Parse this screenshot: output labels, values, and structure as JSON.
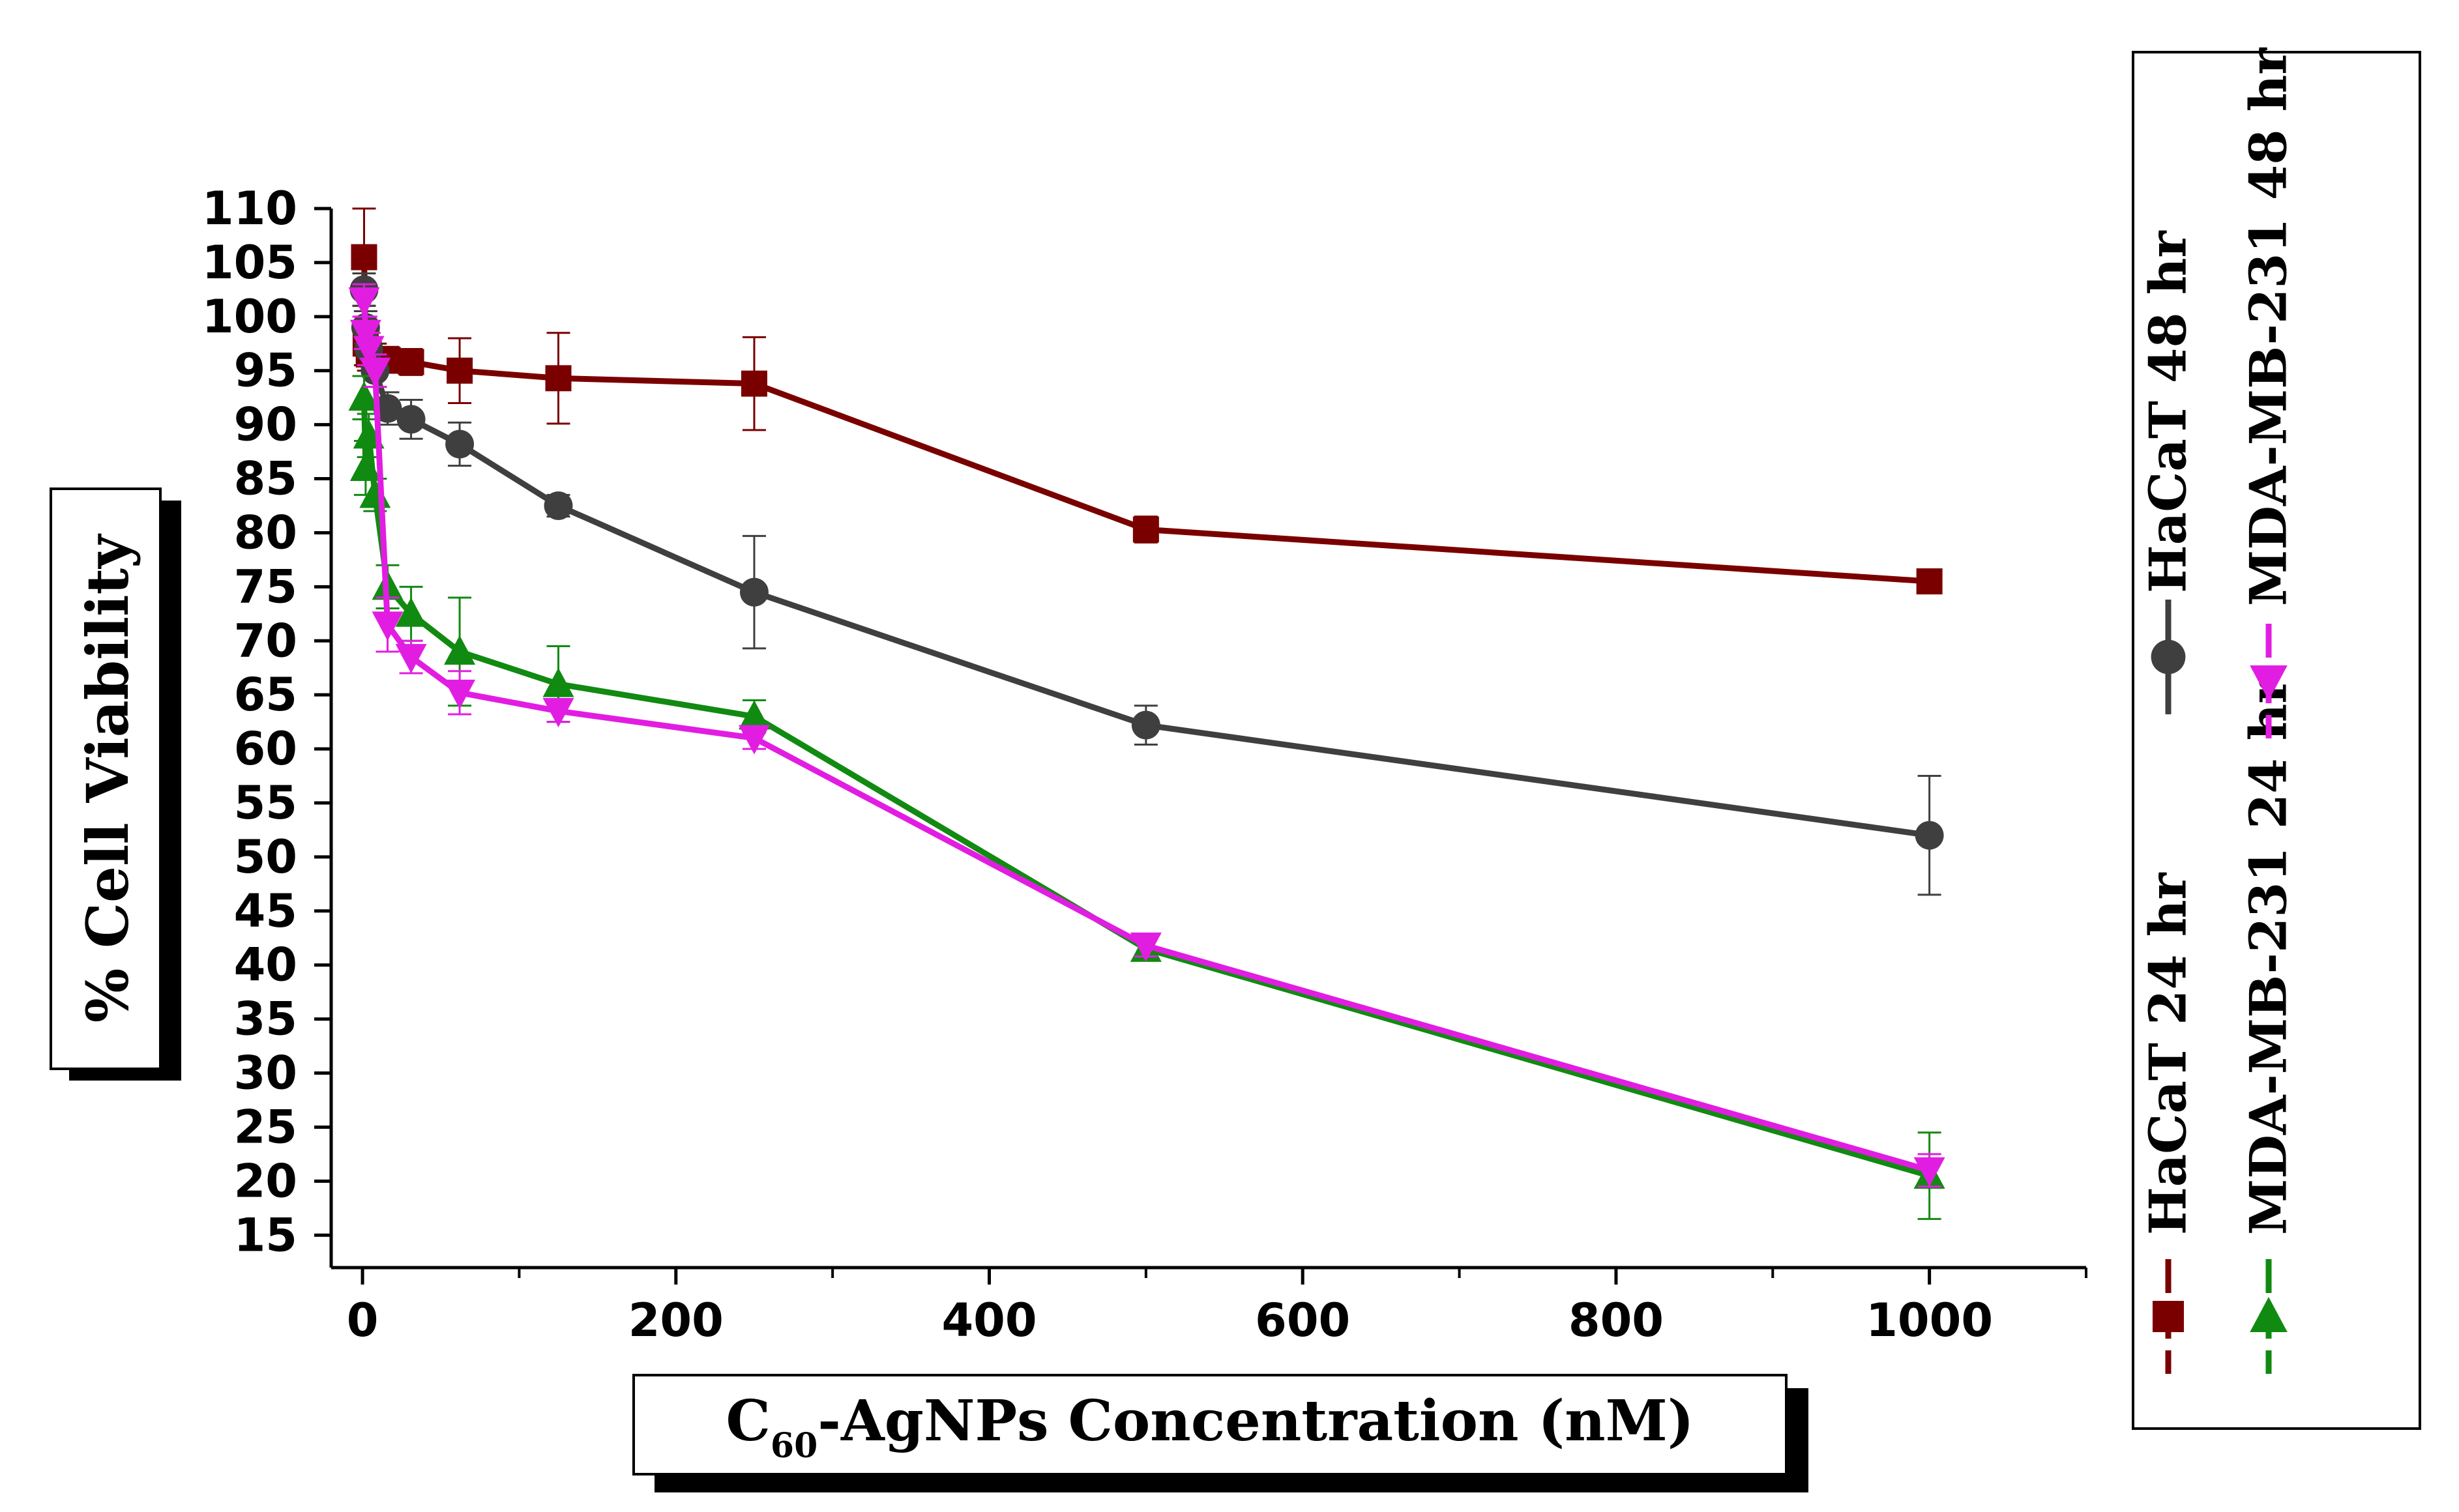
{
  "chart_data": {
    "type": "line",
    "title": "",
    "xlabel_prefix": "C",
    "xlabel_sub": "60",
    "xlabel_rest": "-AgNPs Concentration (nM)",
    "ylabel": "% Cell Viability",
    "xlim": [
      -20,
      1100
    ],
    "ylim": [
      12,
      110
    ],
    "x_ticks": [
      0,
      200,
      400,
      600,
      800,
      1000
    ],
    "x_minor_ticks": [
      100,
      300,
      500,
      700,
      900,
      1100
    ],
    "y_ticks": [
      15,
      20,
      25,
      30,
      35,
      40,
      45,
      50,
      55,
      60,
      65,
      70,
      75,
      80,
      85,
      90,
      95,
      100,
      105,
      110
    ],
    "legend_position": "right (vertical text)",
    "series": [
      {
        "name": "HaCaT 24 hr",
        "color": "#7a0000",
        "marker": "square",
        "line_style": "dashed",
        "x": [
          1,
          2,
          4,
          8,
          16,
          31,
          62,
          125,
          250,
          500,
          1000
        ],
        "y": [
          105.5,
          97.5,
          96.5,
          96,
          96,
          95.8,
          95,
          94.3,
          93.8,
          80.3,
          75.5
        ],
        "err": [
          4.5,
          2,
          1.5,
          1.5,
          1.2,
          1.2,
          3,
          4.2,
          4.3,
          1.2,
          0.8
        ]
      },
      {
        "name": "HaCaT 48 hr",
        "color": "#3f3f3f",
        "marker": "circle",
        "line_style": "solid",
        "x": [
          1,
          2,
          4,
          8,
          16,
          31,
          62,
          125,
          250,
          500,
          1000
        ],
        "y": [
          102.5,
          99,
          97,
          95,
          91.5,
          90.5,
          88.2,
          82.5,
          74.5,
          62.2,
          52
        ],
        "err": [
          1.5,
          1.5,
          1.5,
          1.5,
          1.5,
          1.8,
          2,
          1,
          5.2,
          1.8,
          5.5
        ]
      },
      {
        "name": "MDA-MB-231 24 hr",
        "color": "#118a11",
        "marker": "triangle-up",
        "line_style": "dashed",
        "x": [
          1,
          2,
          4,
          8,
          16,
          31,
          62,
          125,
          250,
          500,
          1000
        ],
        "y": [
          92.5,
          86,
          89,
          83.5,
          75,
          72.5,
          69,
          66,
          63,
          41.5,
          20.5
        ],
        "err": [
          2,
          2.5,
          2,
          1.5,
          2,
          2.5,
          5,
          3.5,
          1.5,
          1,
          4
        ]
      },
      {
        "name": "MDA-MB-231 48 hr",
        "color": "#e21de2",
        "marker": "triangle-down",
        "line_style": "dashed",
        "x": [
          1,
          2,
          4,
          8,
          16,
          31,
          62,
          125,
          250,
          500,
          1000
        ],
        "y": [
          101.5,
          98.5,
          97,
          95,
          71.5,
          68.5,
          65.2,
          63.5,
          61,
          41.8,
          21
        ],
        "err": [
          1.5,
          1.5,
          1.5,
          1.5,
          2.5,
          1.5,
          2,
          1,
          1,
          1,
          1.5
        ]
      }
    ]
  }
}
